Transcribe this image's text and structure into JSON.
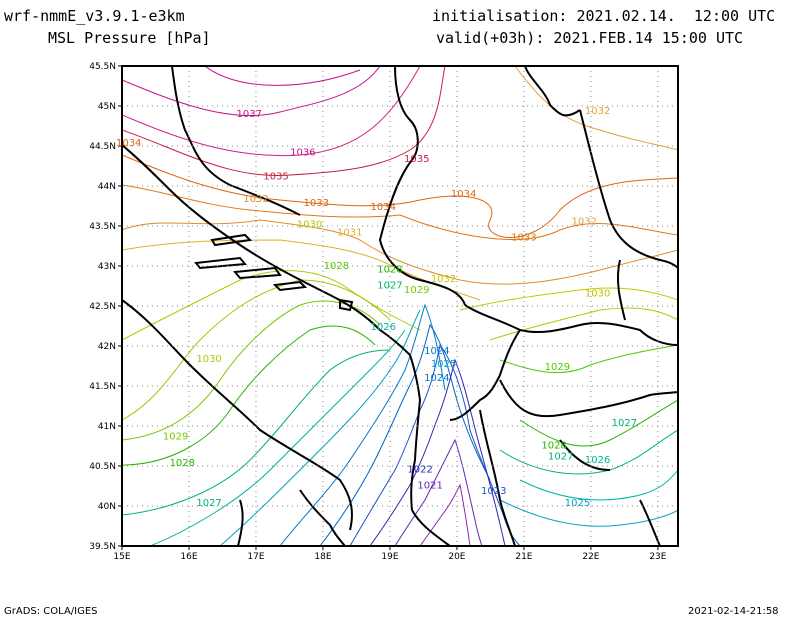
{
  "header": {
    "model": "wrf-nmmE_v3.9.1-e3km",
    "field": "MSL Pressure [hPa]",
    "initialisation": "initialisation: 2021.02.14.  12:00 UTC",
    "valid": "valid(+03h): 2021.FEB.14 15:00 UTC"
  },
  "footer": {
    "left": "GrADS: COLA/IGES",
    "right": "2021-02-14-21:58"
  },
  "chart_data": {
    "type": "contour-map",
    "lon_range": [
      15,
      23.3
    ],
    "lat_range": [
      39.5,
      45.5
    ],
    "x_ticks": [
      "15E",
      "16E",
      "17E",
      "18E",
      "19E",
      "20E",
      "21E",
      "22E",
      "23E"
    ],
    "y_ticks": [
      "39.5N",
      "40N",
      "40.5N",
      "41N",
      "41.5N",
      "42N",
      "42.5N",
      "43N",
      "43.5N",
      "44N",
      "44.5N",
      "45N",
      "45.5N"
    ],
    "grid": "dotted",
    "contour_labels": [
      {
        "text": "1037",
        "lon": 16.9,
        "lat": 44.86,
        "color": "#c8108c"
      },
      {
        "text": "1036",
        "lon": 17.7,
        "lat": 44.38,
        "color": "#c8108c"
      },
      {
        "text": "1035",
        "lon": 17.3,
        "lat": 44.08,
        "color": "#c81e3c"
      },
      {
        "text": "1035",
        "lon": 19.4,
        "lat": 44.3,
        "color": "#c81e3c"
      },
      {
        "text": "1034",
        "lon": 20.1,
        "lat": 43.86,
        "color": "#e06414"
      },
      {
        "text": "1034",
        "lon": 18.9,
        "lat": 43.7,
        "color": "#e06414"
      },
      {
        "text": "1033",
        "lon": 17.9,
        "lat": 43.75,
        "color": "#e06414"
      },
      {
        "text": "1033",
        "lon": 21.0,
        "lat": 43.32,
        "color": "#e07814"
      },
      {
        "text": "1032",
        "lon": 17.0,
        "lat": 43.8,
        "color": "#e08c28"
      },
      {
        "text": "1032",
        "lon": 21.9,
        "lat": 43.52,
        "color": "#e8a03c"
      },
      {
        "text": "1032",
        "lon": 22.1,
        "lat": 44.9,
        "color": "#e8a03c"
      },
      {
        "text": "1032",
        "lon": 19.8,
        "lat": 42.8,
        "color": "#c8c800"
      },
      {
        "text": "1031",
        "lon": 18.4,
        "lat": 43.38,
        "color": "#dcb428"
      },
      {
        "text": "1030",
        "lon": 17.8,
        "lat": 43.48,
        "color": "#b4c800"
      },
      {
        "text": "1030",
        "lon": 22.1,
        "lat": 42.62,
        "color": "#b4c800"
      },
      {
        "text": "1028",
        "lon": 18.2,
        "lat": 42.96,
        "color": "#50c800"
      },
      {
        "text": "1028",
        "lon": 19.0,
        "lat": 42.92,
        "color": "#28b400"
      },
      {
        "text": "1028",
        "lon": 21.45,
        "lat": 40.72,
        "color": "#28b400"
      },
      {
        "text": "1027",
        "lon": 19.0,
        "lat": 42.72,
        "color": "#00b464"
      },
      {
        "text": "1027",
        "lon": 22.5,
        "lat": 41.0,
        "color": "#00b478"
      },
      {
        "text": "1027",
        "lon": 16.3,
        "lat": 40.0,
        "color": "#00b478"
      },
      {
        "text": "1027",
        "lon": 21.55,
        "lat": 40.58,
        "color": "#00b478"
      },
      {
        "text": "1029",
        "lon": 19.4,
        "lat": 42.66,
        "color": "#78c800"
      },
      {
        "text": "1029",
        "lon": 15.8,
        "lat": 40.83,
        "color": "#78c800"
      },
      {
        "text": "1029",
        "lon": 21.5,
        "lat": 41.7,
        "color": "#50c800"
      },
      {
        "text": "1028",
        "lon": 15.9,
        "lat": 40.5,
        "color": "#28b400"
      },
      {
        "text": "1026",
        "lon": 18.9,
        "lat": 42.2,
        "color": "#00b4a0"
      },
      {
        "text": "1026",
        "lon": 22.1,
        "lat": 40.54,
        "color": "#00b4a0"
      },
      {
        "text": "1025",
        "lon": 19.8,
        "lat": 41.74,
        "color": "#00a0c8"
      },
      {
        "text": "1025",
        "lon": 21.8,
        "lat": 40.0,
        "color": "#00a0c8"
      },
      {
        "text": "1024",
        "lon": 19.7,
        "lat": 41.9,
        "color": "#0078c8"
      },
      {
        "text": "1024",
        "lon": 19.7,
        "lat": 41.56,
        "color": "#0078c8"
      },
      {
        "text": "1023",
        "lon": 20.55,
        "lat": 40.15,
        "color": "#1e50c8"
      },
      {
        "text": "1022",
        "lon": 19.45,
        "lat": 40.42,
        "color": "#2828b4"
      },
      {
        "text": "1021",
        "lon": 19.6,
        "lat": 40.22,
        "color": "#6428b4"
      },
      {
        "text": "1030",
        "lon": 16.3,
        "lat": 41.8,
        "color": "#b4c800"
      },
      {
        "text": "1034",
        "lon": 15.1,
        "lat": 44.5,
        "color": "#e06414"
      }
    ]
  }
}
